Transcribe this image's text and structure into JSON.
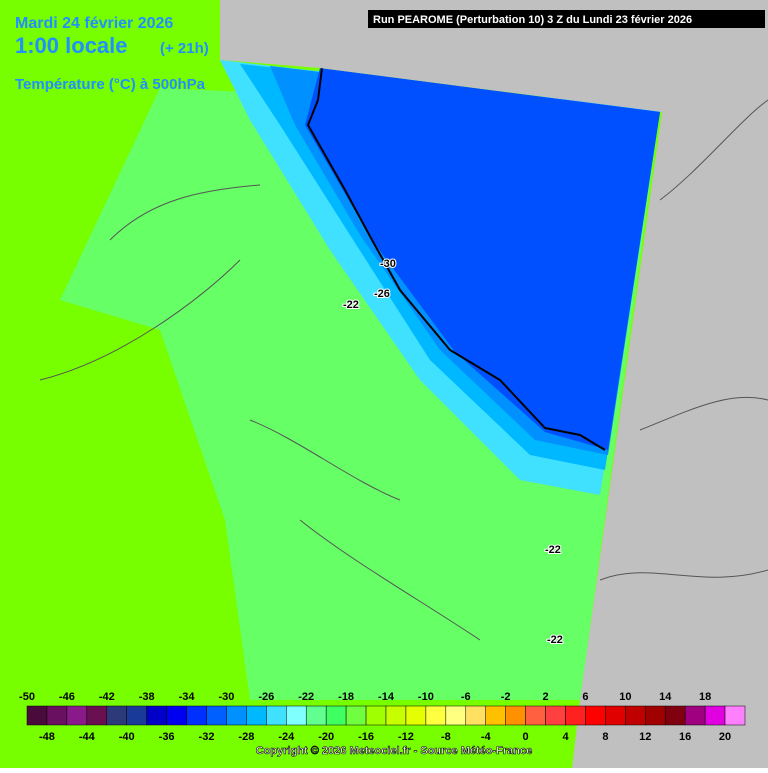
{
  "header": {
    "date": "Mardi 24 février 2026",
    "time": "1:00 locale",
    "lead": "(+ 21h)",
    "field": "Température (°C) à 500hPa",
    "run": "Run PEAROME (Perturbation 10) 3 Z du Lundi 23 février 2026"
  },
  "contours": [
    {
      "label": -30
    },
    {
      "label": -26
    },
    {
      "label": -22
    },
    {
      "label": -22
    },
    {
      "label": -22
    }
  ],
  "legend": {
    "labels": [
      -50,
      -48,
      -46,
      -44,
      -42,
      -40,
      -38,
      -36,
      -34,
      -32,
      -30,
      -28,
      -26,
      -24,
      -22,
      -20,
      -18,
      -16,
      -14,
      -12,
      -10,
      -8,
      -6,
      -4,
      -2,
      0,
      2,
      4,
      6,
      8,
      10,
      12,
      14,
      16,
      18,
      20
    ],
    "colors": [
      "#4a0a3c",
      "#6a1060",
      "#8a1a8a",
      "#6a1050",
      "#2c3a7a",
      "#1a3a9a",
      "#0000c8",
      "#0000f0",
      "#0030ff",
      "#0060ff",
      "#0090ff",
      "#00b8ff",
      "#40e0ff",
      "#80ffff",
      "#60ff90",
      "#40ff60",
      "#70ff40",
      "#a0ff00",
      "#c8ff00",
      "#e6ff00",
      "#ffff40",
      "#ffff80",
      "#ffe060",
      "#ffc000",
      "#ff9000",
      "#ff6040",
      "#ff4040",
      "#ff2020",
      "#ff0000",
      "#e00000",
      "#c00000",
      "#a00000",
      "#800010",
      "#a00080",
      "#e000e0",
      "#ff80ff"
    ]
  },
  "footer": {
    "copyright": "Copyright © 2026 Meteociel.fr - Source Météo-France"
  }
}
